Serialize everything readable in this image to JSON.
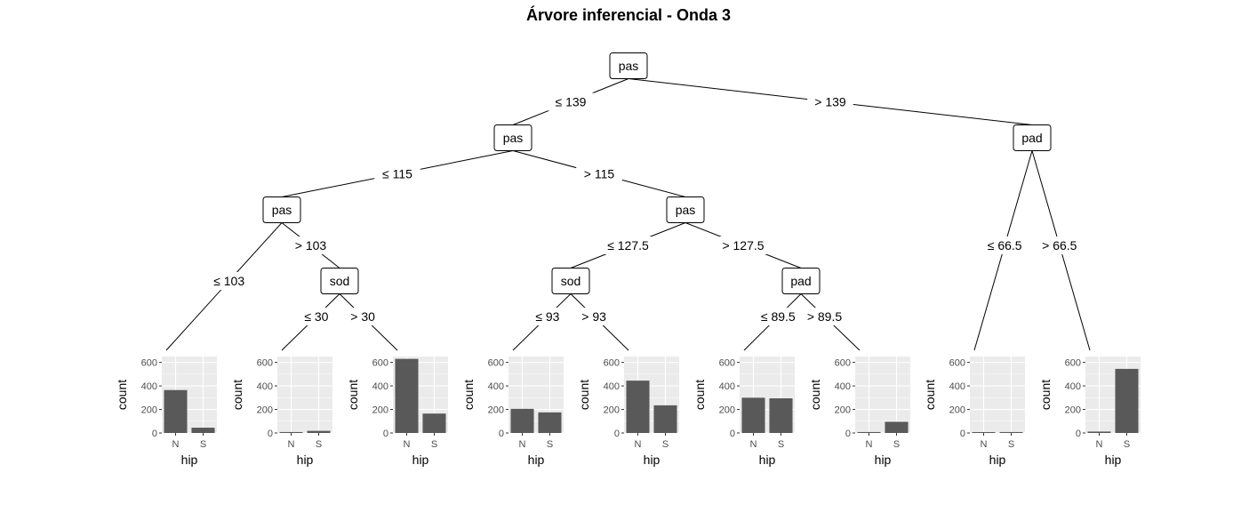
{
  "title": "Árvore inferencial - Onda 3",
  "inner_nodes": [
    {
      "id": 1,
      "label": "pas"
    },
    {
      "id": 2,
      "label": "pas"
    },
    {
      "id": 3,
      "label": "pas"
    },
    {
      "id": 4,
      "label": "sod"
    },
    {
      "id": 5,
      "label": "pas"
    },
    {
      "id": 6,
      "label": "sod"
    },
    {
      "id": 7,
      "label": "pad"
    },
    {
      "id": 8,
      "label": "pad"
    }
  ],
  "edges": [
    {
      "from": 1,
      "to": 2,
      "label": "≤  139"
    },
    {
      "from": 1,
      "to": 8,
      "label": ">  139"
    },
    {
      "from": 2,
      "to": 3,
      "label": "≤  115"
    },
    {
      "from": 2,
      "to": 5,
      "label": ">  115"
    },
    {
      "from": 3,
      "to": "L1",
      "label": "≤  103"
    },
    {
      "from": 3,
      "to": 4,
      "label": ">  103"
    },
    {
      "from": 4,
      "to": "L2",
      "label": "≤  30"
    },
    {
      "from": 4,
      "to": "L3",
      "label": ">  30"
    },
    {
      "from": 5,
      "to": 6,
      "label": "≤  127.5"
    },
    {
      "from": 5,
      "to": 7,
      "label": ">  127.5"
    },
    {
      "from": 6,
      "to": "L4",
      "label": "≤  93"
    },
    {
      "from": 6,
      "to": "L5",
      "label": ">  93"
    },
    {
      "from": 7,
      "to": "L6",
      "label": "≤  89.5"
    },
    {
      "from": 7,
      "to": "L7",
      "label": ">  89.5"
    },
    {
      "from": 8,
      "to": "L8",
      "label": "≤  66.5"
    },
    {
      "from": 8,
      "to": "L9",
      "label": ">  66.5"
    }
  ],
  "chart_data": {
    "type": "bar",
    "categories": [
      "N",
      "S"
    ],
    "xlabel": "hip",
    "ylabel": "count",
    "yticks": [
      0,
      200,
      400,
      600
    ],
    "ylim": [
      0,
      650
    ],
    "grid": true,
    "leaves": [
      {
        "id": "L1",
        "values": [
          365,
          45
        ]
      },
      {
        "id": "L2",
        "values": [
          8,
          18
        ]
      },
      {
        "id": "L3",
        "values": [
          630,
          165
        ]
      },
      {
        "id": "L4",
        "values": [
          205,
          175
        ]
      },
      {
        "id": "L5",
        "values": [
          445,
          235
        ]
      },
      {
        "id": "L6",
        "values": [
          300,
          295
        ]
      },
      {
        "id": "L7",
        "values": [
          8,
          95
        ]
      },
      {
        "id": "L8",
        "values": [
          2,
          8
        ]
      },
      {
        "id": "L9",
        "values": [
          12,
          545
        ]
      }
    ]
  }
}
